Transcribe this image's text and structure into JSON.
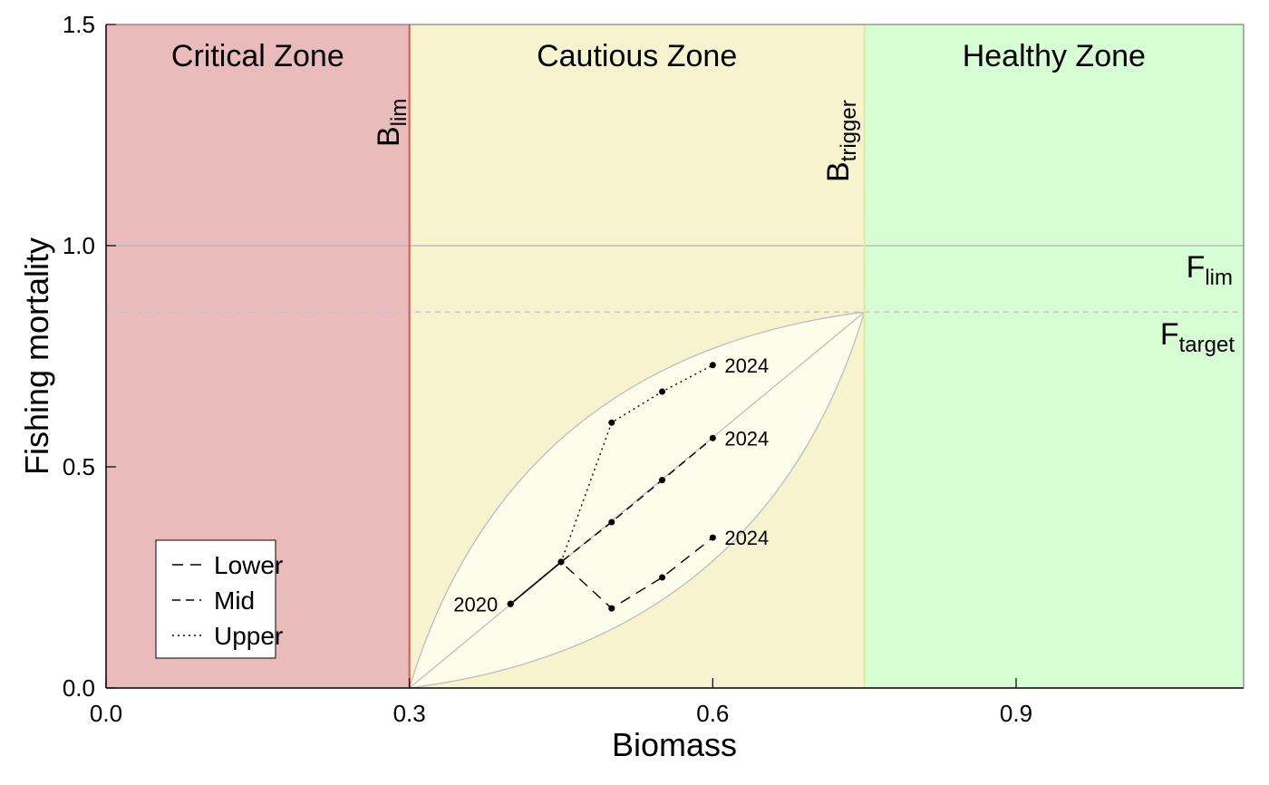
{
  "chart_data": {
    "type": "line",
    "xlabel": "Biomass",
    "ylabel": "Fishing mortality",
    "xlim": [
      0.0,
      1.125
    ],
    "ylim": [
      0.0,
      1.5
    ],
    "xticks": [
      0.0,
      0.3,
      0.6,
      0.9
    ],
    "yticks": [
      0.0,
      0.5,
      1.0,
      1.5
    ],
    "xtick_labels": [
      "0.0",
      "0.3",
      "0.6",
      "0.9"
    ],
    "ytick_labels": [
      "0.0",
      "0.5",
      "1.0",
      "1.5"
    ],
    "grid": false,
    "zones": [
      {
        "label": "Critical Zone",
        "x_from": 0.0,
        "x_to": 0.3,
        "color": "#e9bbbb"
      },
      {
        "label": "Cautious Zone",
        "x_from": 0.3,
        "x_to": 0.75,
        "color": "#f7f3cf"
      },
      {
        "label": "Healthy Zone",
        "x_from": 0.75,
        "x_to": 1.125,
        "color": "#d7fdd4"
      }
    ],
    "reference_lines": {
      "blim": {
        "x": 0.3,
        "base": "B",
        "sub": "lim",
        "color": "#e0524f"
      },
      "btrigger": {
        "x": 0.75,
        "base": "B",
        "sub": "trigger",
        "color": "#e6ea98"
      },
      "flim": {
        "y": 1.0,
        "base": "F",
        "sub": "lim",
        "color": "#bbbbbb"
      },
      "ftarget": {
        "y": 0.85,
        "base": "F",
        "sub": "target",
        "color": "#c4c4c4"
      }
    },
    "envelope": {
      "start": [
        0.3,
        0.0
      ],
      "end": [
        0.75,
        0.85
      ],
      "fill": "#fdfdeb",
      "stroke": "#bdbdbd"
    },
    "series": [
      {
        "name": "Lower",
        "dash": "12,8",
        "x": [
          0.4,
          0.45,
          0.5,
          0.55,
          0.6
        ],
        "y": [
          0.19,
          0.285,
          0.18,
          0.25,
          0.34
        ]
      },
      {
        "name": "Mid",
        "dash": "9,6",
        "x": [
          0.4,
          0.45,
          0.5,
          0.55,
          0.6
        ],
        "y": [
          0.19,
          0.285,
          0.375,
          0.47,
          0.565
        ]
      },
      {
        "name": "Upper",
        "dash": "2,4",
        "x": [
          0.4,
          0.45,
          0.5,
          0.55,
          0.6
        ],
        "y": [
          0.19,
          0.285,
          0.6,
          0.67,
          0.73
        ]
      }
    ],
    "start_label": "2020",
    "end_label": "2024",
    "legend_position": "bottom-left"
  }
}
